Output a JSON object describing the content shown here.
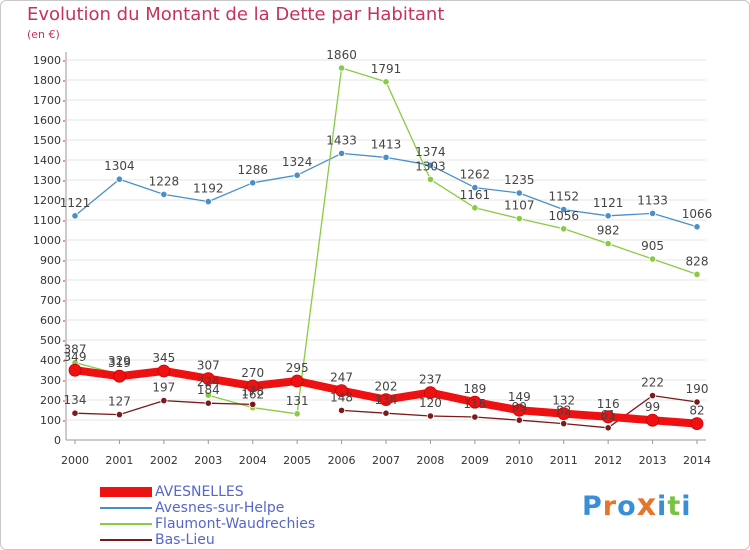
{
  "title": "Evolution du Montant de la Dette par Habitant",
  "subtitle": "(en €)",
  "logo": "Proxiti",
  "colors": {
    "title": "#c8325a",
    "axis": "#999999",
    "grid": "#e6e6e6",
    "logo": [
      "#3a8ed8",
      "#e8742c",
      "#3a8ed8",
      "#e8742c",
      "#3a8ed8",
      "#7ac244",
      "#3a8ed8"
    ]
  },
  "chart_data": {
    "type": "line",
    "title": "Evolution du Montant de la Dette par Habitant",
    "subtitle": "(en €)",
    "x": [
      "2000",
      "2001",
      "2002",
      "2003",
      "2004",
      "2005",
      "2006",
      "2007",
      "2008",
      "2009",
      "2010",
      "2011",
      "2012",
      "2013",
      "2014"
    ],
    "ylim": [
      0,
      1900
    ],
    "yticks": [
      0,
      100,
      200,
      300,
      400,
      500,
      600,
      700,
      800,
      900,
      1000,
      1100,
      1200,
      1300,
      1400,
      1500,
      1600,
      1700,
      1800,
      1900
    ],
    "grid": "horizontal",
    "legend_position": "bottom-left",
    "series": [
      {
        "name": "AVESNELLES",
        "color": "#ee1111",
        "values": [
          349,
          319,
          345,
          307,
          270,
          295,
          247,
          202,
          237,
          189,
          149,
          132,
          116,
          99,
          82
        ]
      },
      {
        "name": "Avesnes-sur-Helpe",
        "color": "#4a90c8",
        "values": [
          1121,
          1304,
          1228,
          1192,
          1286,
          1324,
          1433,
          1413,
          1374,
          1262,
          1235,
          1152,
          1121,
          1133,
          1066
        ]
      },
      {
        "name": "Flaumont-Waudrechies",
        "color": "#88cc44",
        "values": [
          387,
          329,
          null,
          224,
          162,
          131,
          1860,
          1791,
          1303,
          1161,
          1107,
          1056,
          982,
          905,
          828
        ]
      },
      {
        "name": "Bas-Lieu",
        "color": "#7a1a1a",
        "values": [
          134,
          127,
          197,
          184,
          178,
          null,
          148,
          134,
          120,
          115,
          99,
          82,
          61,
          222,
          190
        ]
      }
    ],
    "data_labels": [
      [
        349,
        319,
        345,
        307,
        270,
        295,
        247,
        202,
        237,
        189,
        149,
        132,
        116,
        99,
        82
      ],
      [
        1121,
        1304,
        1228,
        1192,
        1286,
        1324,
        1433,
        1413,
        1374,
        1262,
        1235,
        1152,
        1121,
        1133,
        1066
      ],
      [
        387,
        329,
        null,
        224,
        162,
        131,
        1860,
        1791,
        1303,
        1161,
        1107,
        1056,
        982,
        905,
        828
      ],
      [
        134,
        127,
        197,
        184,
        178,
        null,
        148,
        134,
        120,
        115,
        99,
        82,
        61,
        222,
        190
      ]
    ]
  },
  "legend": [
    {
      "label": "AVESNELLES",
      "color": "#ee1111"
    },
    {
      "label": "Avesnes-sur-Helpe",
      "color": "#4a90c8"
    },
    {
      "label": "Flaumont-Waudrechies",
      "color": "#88cc44"
    },
    {
      "label": "Bas-Lieu",
      "color": "#7a1a1a"
    }
  ]
}
